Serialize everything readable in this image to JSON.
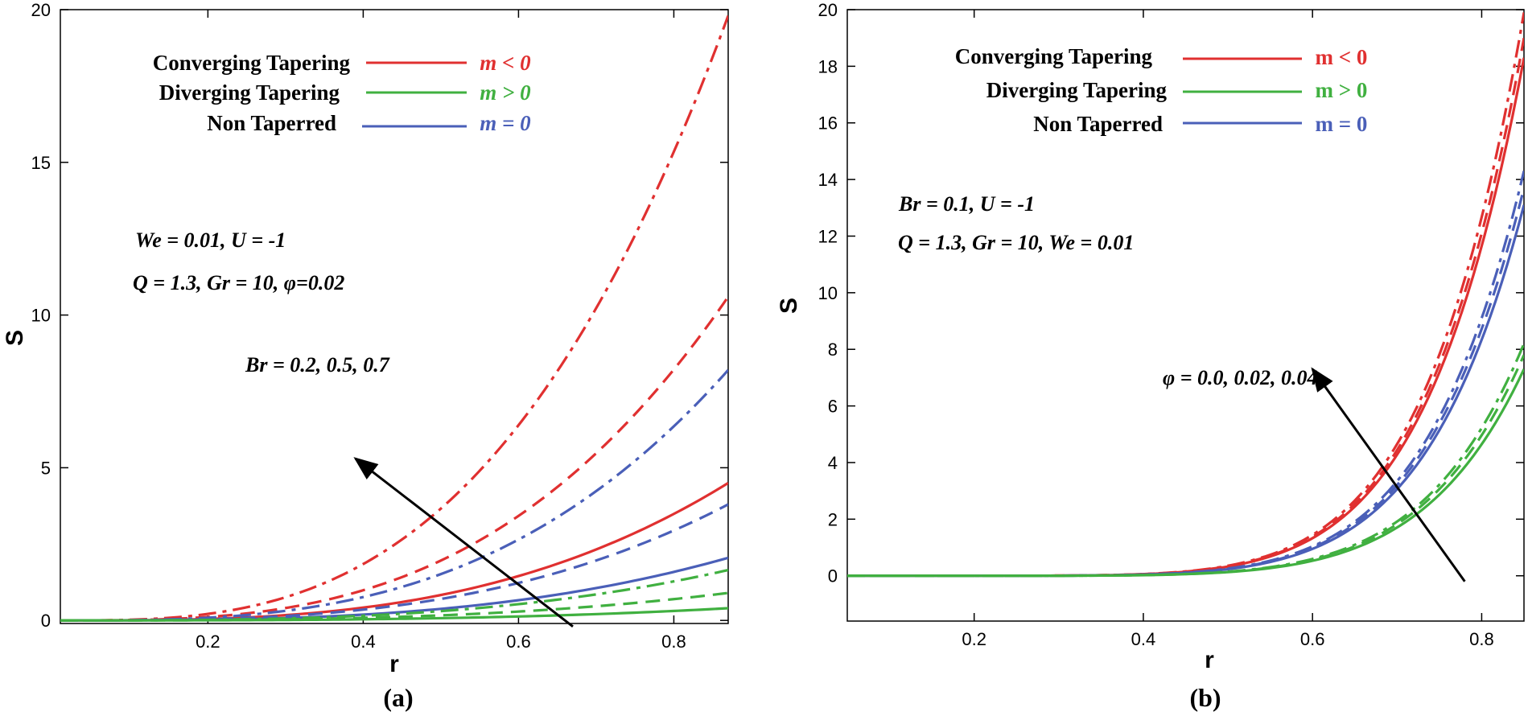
{
  "colors": {
    "converging": "#e03030",
    "diverging": "#40b040",
    "non": "#4a5fb8",
    "arrow": "#000000"
  },
  "chart_data": [
    {
      "type": "line",
      "panel_label": "(a)",
      "xlabel": "r",
      "ylabel": "S",
      "xlim": [
        0.01,
        0.87
      ],
      "ylim": [
        -0.1,
        20
      ],
      "xticks": [
        0.2,
        0.4,
        0.6,
        0.8
      ],
      "xtick_labels": [
        "0.2",
        "0.4",
        "0.6",
        "0.8"
      ],
      "yticks": [
        0,
        5,
        10,
        15,
        20
      ],
      "ytick_labels": [
        "0",
        "5",
        "10",
        "15",
        "20"
      ],
      "legend": {
        "placement": "top-left",
        "italic_m": true,
        "entries": [
          {
            "label": "Converging Tapering",
            "condition": "m < 0",
            "color_key": "converging"
          },
          {
            "label": "Diverging Tapering",
            "condition": "m > 0",
            "color_key": "diverging"
          },
          {
            "label": "Non Taperred",
            "condition": "m = 0",
            "color_key": "non"
          }
        ]
      },
      "params": [
        "We = 0.01, U = -1",
        "Q = 1.3, Gr = 10, φ=0.02"
      ],
      "arrow_label": "Br = 0.2, 0.5, 0.7",
      "arrow": {
        "from": [
          0.67,
          -0.2
        ],
        "to": [
          0.39,
          5.3
        ]
      },
      "series": [
        {
          "name": "Converging, Br = 0.2",
          "color_key": "converging",
          "dash": "solid",
          "end_value": 4.5
        },
        {
          "name": "Converging, Br = 0.5",
          "color_key": "converging",
          "dash": "dash",
          "end_value": 10.6
        },
        {
          "name": "Converging, Br = 0.7",
          "color_key": "converging",
          "dash": "dashdot",
          "end_value": 19.8
        },
        {
          "name": "Non Taperred, Br = 0.2",
          "color_key": "non",
          "dash": "solid",
          "end_value": 2.05
        },
        {
          "name": "Non Taperred, Br = 0.5",
          "color_key": "non",
          "dash": "dash",
          "end_value": 3.8
        },
        {
          "name": "Non Taperred, Br = 0.7",
          "color_key": "non",
          "dash": "dashdot",
          "end_value": 8.2
        },
        {
          "name": "Diverging, Br = 0.2",
          "color_key": "diverging",
          "dash": "solid",
          "end_value": 0.4
        },
        {
          "name": "Diverging, Br = 0.5",
          "color_key": "diverging",
          "dash": "dash",
          "end_value": 0.9
        },
        {
          "name": "Diverging, Br = 0.7",
          "color_key": "diverging",
          "dash": "dashdot",
          "end_value": 1.65
        }
      ],
      "curve_exponent": 3
    },
    {
      "type": "line",
      "panel_label": "(b)",
      "xlabel": "r",
      "ylabel": "S",
      "xlim": [
        0.05,
        0.85
      ],
      "ylim": [
        -1.6,
        20
      ],
      "xticks": [
        0.2,
        0.4,
        0.6,
        0.8
      ],
      "xtick_labels": [
        "0.2",
        "0.4",
        "0.6",
        "0.8"
      ],
      "yticks": [
        0,
        2,
        4,
        6,
        8,
        10,
        12,
        14,
        16,
        18,
        20
      ],
      "ytick_labels": [
        "0",
        "2",
        "4",
        "6",
        "8",
        "10",
        "12",
        "14",
        "16",
        "18",
        "20"
      ],
      "legend": {
        "placement": "top-left",
        "italic_m": false,
        "entries": [
          {
            "label": "Converging Tapering",
            "condition": "m < 0",
            "color_key": "converging"
          },
          {
            "label": "Diverging Tapering",
            "condition": "m > 0",
            "color_key": "diverging"
          },
          {
            "label": "Non Taperred",
            "condition": "m = 0",
            "color_key": "non"
          }
        ]
      },
      "params": [
        "Br = 0.1, U = -1",
        "Q = 1.3, Gr = 10, We = 0.01"
      ],
      "arrow_label": "φ = 0.0, 0.02, 0.04",
      "arrow": {
        "from": [
          0.78,
          -0.2
        ],
        "to": [
          0.6,
          7.3
        ]
      },
      "series": [
        {
          "name": "Converging, φ = 0.0",
          "color_key": "converging",
          "dash": "solid",
          "end_value": 18.3
        },
        {
          "name": "Converging, φ = 0.02",
          "color_key": "converging",
          "dash": "dash",
          "end_value": 19.0
        },
        {
          "name": "Converging, φ = 0.04",
          "color_key": "converging",
          "dash": "dashdot",
          "end_value": 19.9
        },
        {
          "name": "Non Taperred, φ = 0.0",
          "color_key": "non",
          "dash": "solid",
          "end_value": 13.1
        },
        {
          "name": "Non Taperred, φ = 0.02",
          "color_key": "non",
          "dash": "dash",
          "end_value": 13.7
        },
        {
          "name": "Non Taperred, φ = 0.04",
          "color_key": "non",
          "dash": "dashdot",
          "end_value": 14.3
        },
        {
          "name": "Diverging, φ = 0.0",
          "color_key": "diverging",
          "dash": "solid",
          "end_value": 7.3
        },
        {
          "name": "Diverging, φ = 0.02",
          "color_key": "diverging",
          "dash": "dash",
          "end_value": 7.8
        },
        {
          "name": "Diverging, φ = 0.04",
          "color_key": "diverging",
          "dash": "dashdot",
          "end_value": 8.2
        }
      ],
      "curve_exponent": 7
    }
  ]
}
